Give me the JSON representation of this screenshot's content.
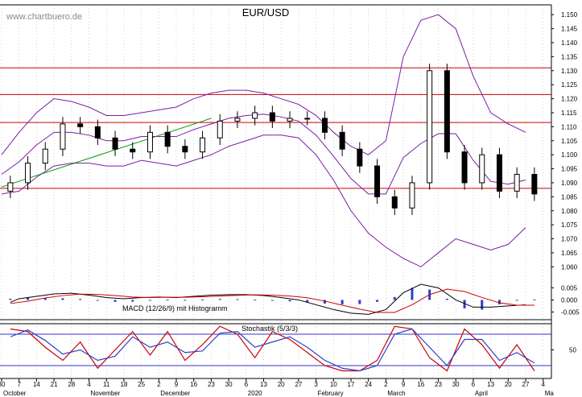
{
  "watermark": "www.chartbuero.de",
  "chart_data": {
    "type": "candlestick",
    "title": "EUR/USD",
    "ylim": [
      1.0555,
      1.1535
    ],
    "yticks": [
      1.06,
      1.065,
      1.07,
      1.075,
      1.08,
      1.085,
      1.09,
      1.095,
      1.1,
      1.105,
      1.11,
      1.115,
      1.12,
      1.125,
      1.13,
      1.135,
      1.14,
      1.145,
      1.15
    ],
    "ytick_labels": [
      "1.060",
      "1.065",
      "1.070",
      "1.075",
      "1.080",
      "1.085",
      "1.090",
      "1.095",
      "1.100",
      "1.105",
      "1.110",
      "1.115",
      "1.120",
      "1.125",
      "1.130",
      "1.135",
      "1.140",
      "1.145",
      "1.150"
    ],
    "resistance_levels": [
      1.088,
      1.1115,
      1.1215,
      1.131
    ],
    "trendline": {
      "x": [
        0,
        60
      ],
      "y": [
        1.0885,
        1.113
      ]
    },
    "x_day_labels": [
      "30",
      "7",
      "14",
      "21",
      "28",
      "4",
      "11",
      "18",
      "25",
      "2",
      "9",
      "16",
      "23",
      "30",
      "6",
      "13",
      "20",
      "27",
      "3",
      "10",
      "17",
      "24",
      "2",
      "9",
      "16",
      "23",
      "30",
      "6",
      "13",
      "20",
      "27",
      "4"
    ],
    "x_month_labels": [
      {
        "label": "October",
        "index": 0
      },
      {
        "label": "November",
        "index": 5
      },
      {
        "label": "December",
        "index": 9
      },
      {
        "label": "2020",
        "index": 14
      },
      {
        "label": "February",
        "index": 18
      },
      {
        "label": "March",
        "index": 22
      },
      {
        "label": "April",
        "index": 27
      },
      {
        "label": "Ma",
        "index": 31
      }
    ],
    "weekly_close": [
      1.09,
      1.097,
      1.102,
      1.111,
      1.11,
      1.106,
      1.102,
      1.101,
      1.108,
      1.103,
      1.101,
      1.106,
      1.112,
      1.113,
      1.115,
      1.112,
      1.113,
      1.113,
      1.108,
      1.102,
      1.096,
      1.085,
      1.081,
      1.09,
      1.13,
      1.101,
      1.09,
      1.1,
      1.087,
      1.093,
      1.086
    ],
    "upper_band": [
      1.1,
      1.108,
      1.115,
      1.12,
      1.119,
      1.117,
      1.114,
      1.114,
      1.115,
      1.116,
      1.117,
      1.12,
      1.122,
      1.123,
      1.123,
      1.122,
      1.12,
      1.118,
      1.114,
      1.108,
      1.103,
      1.1,
      1.105,
      1.135,
      1.148,
      1.15,
      1.145,
      1.128,
      1.115,
      1.111,
      1.108
    ],
    "lower_band": [
      1.086,
      1.087,
      1.092,
      1.096,
      1.097,
      1.097,
      1.096,
      1.096,
      1.098,
      1.097,
      1.096,
      1.098,
      1.1,
      1.103,
      1.105,
      1.107,
      1.107,
      1.106,
      1.1,
      1.091,
      1.08,
      1.072,
      1.067,
      1.063,
      1.06,
      1.065,
      1.07,
      1.068,
      1.066,
      1.068,
      1.074
    ],
    "macd": {
      "label": "MACD (12/26/9) mit Histogramm",
      "ylim": [
        -0.0082,
        0.0085
      ],
      "yticks": [
        0.005,
        0,
        -0.005
      ],
      "ytick_labels": [
        "0.005",
        "0.000",
        "-0.005"
      ],
      "macd_line": [
        -0.001,
        0.0005,
        0.0015,
        0.0025,
        0.0028,
        0.002,
        0.001,
        0.0005,
        0.001,
        0.0012,
        0.001,
        0.0015,
        0.002,
        0.0022,
        0.0022,
        0.0018,
        0.001,
        0.0,
        -0.002,
        -0.004,
        -0.0055,
        -0.006,
        -0.004,
        0.003,
        0.0065,
        0.005,
        0.0,
        -0.003,
        -0.003,
        -0.0025,
        -0.002
      ],
      "signal_line": [
        -0.0015,
        -0.0005,
        0.0008,
        0.0018,
        0.0024,
        0.0023,
        0.0018,
        0.0012,
        0.001,
        0.0011,
        0.0011,
        0.0013,
        0.0016,
        0.0019,
        0.0021,
        0.002,
        0.0016,
        0.0009,
        -0.0005,
        -0.0022,
        -0.0038,
        -0.0052,
        -0.0052,
        -0.002,
        0.0022,
        0.0045,
        0.0035,
        0.001,
        -0.0012,
        -0.0022,
        -0.0022
      ],
      "histogram": [
        0.0005,
        0.001,
        0.0007,
        0.0007,
        0.0004,
        -0.0003,
        -0.0008,
        -0.0007,
        0.0,
        0.0001,
        -0.0001,
        0.0002,
        0.0004,
        0.0003,
        0.0001,
        -0.0002,
        -0.0006,
        -0.0009,
        -0.0015,
        -0.0018,
        -0.0017,
        -0.0008,
        0.0012,
        0.005,
        0.0043,
        0.0005,
        -0.0035,
        -0.004,
        -0.0018,
        -0.0003,
        0.0002
      ]
    },
    "stochastic": {
      "label": "Stochastik (5/3/3)",
      "ylim": [
        0,
        100
      ],
      "yticks": [
        50
      ],
      "ytick_labels": [
        "50"
      ],
      "levels": [
        20,
        80
      ],
      "k": [
        90,
        85,
        55,
        30,
        65,
        15,
        50,
        85,
        40,
        85,
        30,
        60,
        95,
        80,
        35,
        85,
        70,
        45,
        20,
        10,
        10,
        30,
        95,
        90,
        35,
        10,
        90,
        60,
        15,
        60,
        10
      ],
      "d": [
        75,
        88,
        68,
        42,
        50,
        30,
        38,
        75,
        55,
        65,
        45,
        48,
        82,
        85,
        55,
        65,
        75,
        55,
        30,
        15,
        10,
        20,
        80,
        90,
        55,
        20,
        70,
        70,
        30,
        45,
        25
      ]
    }
  }
}
